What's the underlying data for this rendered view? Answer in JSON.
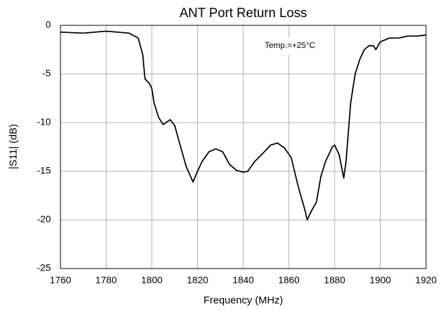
{
  "chart_data": {
    "type": "line",
    "title": "ANT Port Return Loss",
    "xlabel": "Frequency (MHz)",
    "ylabel": "|S11| (dB)",
    "annotation": "Temp.=+25°C",
    "x": [
      1760,
      1770,
      1780,
      1790,
      1794,
      1796,
      1797,
      1799,
      1800,
      1801,
      1803,
      1805,
      1808,
      1810,
      1812,
      1815,
      1818,
      1820,
      1822,
      1825,
      1828,
      1831,
      1834,
      1837,
      1840,
      1842,
      1845,
      1848,
      1852,
      1855,
      1858,
      1861,
      1864,
      1867,
      1868,
      1870,
      1872,
      1874,
      1876,
      1879,
      1880,
      1882,
      1884,
      1885,
      1887,
      1889,
      1891,
      1893,
      1895,
      1897,
      1898,
      1900,
      1904,
      1908,
      1912,
      1916,
      1920
    ],
    "series": [
      {
        "name": "|S11|",
        "color": "#000000",
        "values": [
          -0.7,
          -0.8,
          -0.6,
          -0.8,
          -1.3,
          -3,
          -5.5,
          -6,
          -6.5,
          -8,
          -9.5,
          -10.2,
          -9.7,
          -10.3,
          -12,
          -14.5,
          -16.1,
          -15,
          -14,
          -13,
          -12.7,
          -13,
          -14.3,
          -14.9,
          -15.1,
          -15,
          -14,
          -13.3,
          -12.3,
          -12.1,
          -12.6,
          -13.6,
          -16.5,
          -19,
          -20,
          -19,
          -18.2,
          -15.5,
          -14,
          -12.5,
          -12.3,
          -13.3,
          -15.7,
          -14,
          -8,
          -5,
          -3.5,
          -2.5,
          -2.1,
          -2.1,
          -2.5,
          -1.7,
          -1.3,
          -1.3,
          -1.1,
          -1.1,
          -1.0
        ]
      }
    ],
    "xlim": [
      1760,
      1920
    ],
    "xticks": [
      1760,
      1780,
      1800,
      1820,
      1840,
      1860,
      1880,
      1900,
      1920
    ],
    "ylim": [
      -25,
      0
    ],
    "yticks": [
      0,
      -5,
      -10,
      -15,
      -20,
      -25
    ],
    "grid": true
  }
}
